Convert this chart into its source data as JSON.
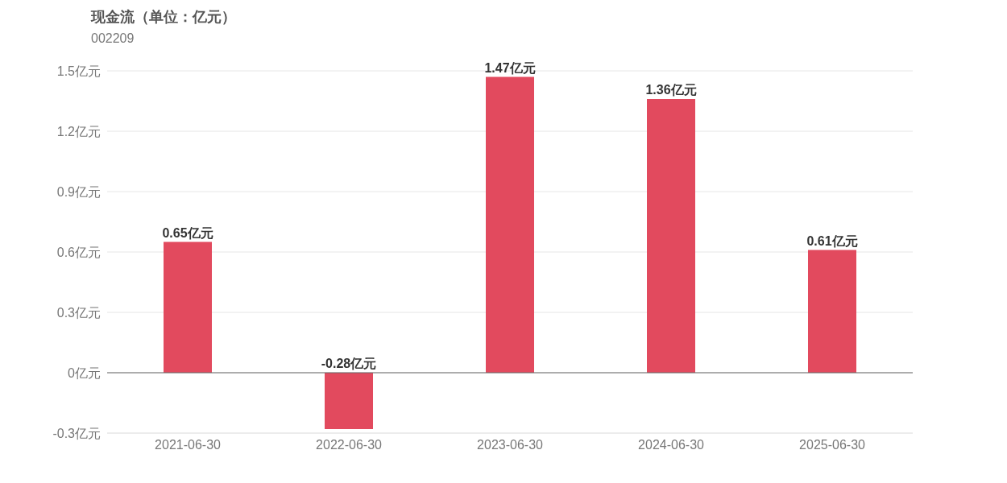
{
  "chart_data": {
    "type": "bar",
    "title": "现金流（单位：亿元）",
    "subtitle": "002209",
    "categories": [
      "2021-06-30",
      "2022-06-30",
      "2023-06-30",
      "2024-06-30",
      "2025-06-30"
    ],
    "series": [
      {
        "color": "#e24a5e",
        "values": [
          0.65,
          -0.28,
          1.47,
          1.36,
          0.61
        ],
        "value_labels": [
          "0.65亿元",
          "-0.28亿元",
          "1.47亿元",
          "1.36亿元",
          "0.61亿元"
        ]
      }
    ],
    "ylim": [
      -0.3,
      1.5
    ],
    "yticks": [
      {
        "value": -0.3,
        "label": "-0.3亿元"
      },
      {
        "value": 0,
        "label": "0亿元"
      },
      {
        "value": 0.3,
        "label": "0.3亿元"
      },
      {
        "value": 0.6,
        "label": "0.6亿元"
      },
      {
        "value": 0.9,
        "label": "0.9亿元"
      },
      {
        "value": 1.2,
        "label": "1.2亿元"
      },
      {
        "value": 1.5,
        "label": "1.5亿元"
      }
    ],
    "grid": "y"
  }
}
